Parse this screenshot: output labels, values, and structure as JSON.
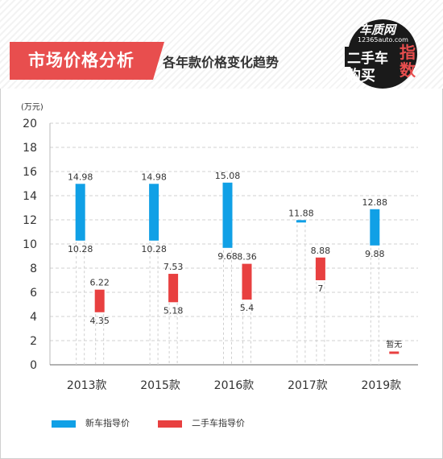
{
  "header": {
    "title": "市场价格分析",
    "subtitle": "各年款价格变化趋势"
  },
  "logo": {
    "brand": "车质网",
    "site": "12365auto.com",
    "line1": "二手车",
    "line2": "购买",
    "line3": "指数"
  },
  "colors": {
    "new_car": "#10a0e6",
    "used_car": "#e84040",
    "grid": "#d0d0d0"
  },
  "chart_data": {
    "type": "bar",
    "subtype": "floating-range",
    "unit_label": "(万元)",
    "ylim": [
      0,
      20
    ],
    "yticks": [
      0,
      2,
      4,
      6,
      8,
      10,
      12,
      14,
      16,
      18,
      20
    ],
    "grid": true,
    "legend_position": "bottom",
    "categories": [
      "2013款",
      "2015款",
      "2016款",
      "2017款",
      "2019款"
    ],
    "series": [
      {
        "name": "新车指导价",
        "ranges": [
          [
            10.28,
            14.98
          ],
          [
            10.28,
            14.98
          ],
          [
            9.68,
            15.08
          ],
          [
            11.88,
            11.88
          ],
          [
            9.88,
            12.88
          ]
        ],
        "labels": [
          [
            "10.28",
            "14.98"
          ],
          [
            "10.28",
            "14.98"
          ],
          [
            "9.68",
            "15.08"
          ],
          [
            "",
            "11.88"
          ],
          [
            "9.88",
            "12.88"
          ]
        ]
      },
      {
        "name": "二手车指导价",
        "ranges": [
          [
            4.35,
            6.22
          ],
          [
            5.18,
            7.53
          ],
          [
            5.4,
            8.36
          ],
          [
            7,
            8.88
          ],
          null
        ],
        "labels": [
          [
            "4.35",
            "6.22"
          ],
          [
            "5.18",
            "7.53"
          ],
          [
            "5.4",
            "8.36"
          ],
          [
            "7",
            "8.88"
          ],
          [
            "",
            "暂无"
          ]
        ]
      }
    ]
  }
}
